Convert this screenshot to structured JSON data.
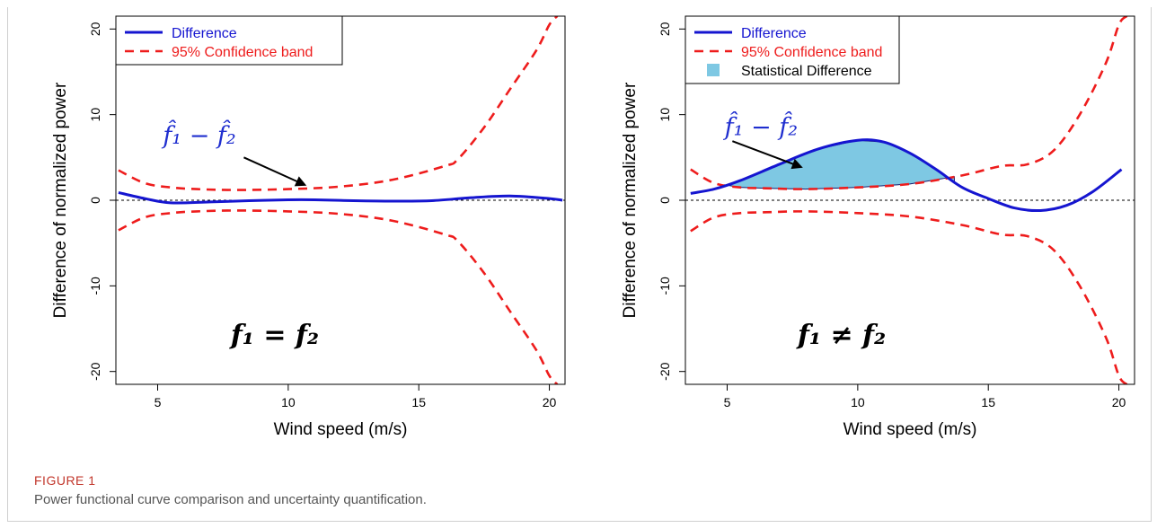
{
  "figure": {
    "label": "FIGURE 1",
    "caption": "Power functional curve comparison and uncertainty quantification."
  },
  "colors": {
    "difference": "#1515d0",
    "band": "#ee1c1c",
    "fill": "#7ec8e3",
    "zero_line": "#000000",
    "label_blue": "#1f2ecf"
  },
  "chart_data": [
    {
      "type": "line",
      "xlabel": "Wind speed (m/s)",
      "ylabel": "Difference of normalized power",
      "xlim": [
        3.4,
        20.6
      ],
      "ylim": [
        -21.5,
        21.5
      ],
      "xticks": [
        5,
        10,
        15,
        20
      ],
      "yticks": [
        -20,
        -10,
        0,
        10,
        20
      ],
      "reference_line": 0,
      "legend": {
        "position": "top-left",
        "entries": [
          {
            "label": "Difference",
            "kind": "line",
            "series": "difference"
          },
          {
            "label": "95% Confidence band",
            "kind": "dashed",
            "series": "band"
          }
        ]
      },
      "annotations": {
        "curve_label": "f̂₁ − f̂₂",
        "equation": "f₁ = f₂"
      },
      "series": [
        {
          "name": "Difference",
          "id": "difference",
          "x": [
            3.5,
            4.5,
            5.5,
            7,
            8.5,
            10,
            11,
            12.5,
            14,
            15.5,
            17,
            18.5,
            20,
            20.5
          ],
          "y": [
            0.9,
            0.2,
            -0.3,
            -0.2,
            -0.05,
            0.05,
            0.05,
            -0.05,
            -0.1,
            -0.05,
            0.3,
            0.5,
            0.2,
            0.0
          ]
        },
        {
          "name": "95% Confidence band",
          "id": "upper",
          "x": [
            3.5,
            4.5,
            5.5,
            6.5,
            8,
            10,
            12,
            14,
            16,
            16.5,
            17.5,
            18.5,
            19.5,
            20,
            20.3
          ],
          "y": [
            3.5,
            2.0,
            1.5,
            1.3,
            1.2,
            1.3,
            1.6,
            2.4,
            4.0,
            4.8,
            8.5,
            13.0,
            17.5,
            20.5,
            21.5
          ]
        },
        {
          "name": "95% Confidence band",
          "id": "lower",
          "x": [
            3.5,
            4.5,
            5.5,
            6.5,
            8,
            10,
            12,
            14,
            16,
            16.5,
            17.5,
            18.5,
            19.5,
            20,
            20.3
          ],
          "y": [
            -3.5,
            -2.0,
            -1.5,
            -1.3,
            -1.2,
            -1.3,
            -1.6,
            -2.4,
            -4.0,
            -4.8,
            -8.5,
            -13.0,
            -17.5,
            -20.5,
            -21.5
          ]
        }
      ]
    },
    {
      "type": "line",
      "xlabel": "Wind speed (m/s)",
      "ylabel": "Difference of normalized power",
      "xlim": [
        3.4,
        20.6
      ],
      "ylim": [
        -21.5,
        21.5
      ],
      "xticks": [
        5,
        10,
        15,
        20
      ],
      "yticks": [
        -20,
        -10,
        0,
        10,
        20
      ],
      "reference_line": 0,
      "legend": {
        "position": "top-left",
        "entries": [
          {
            "label": "Difference",
            "kind": "line",
            "series": "difference"
          },
          {
            "label": "95% Confidence band",
            "kind": "dashed",
            "series": "band"
          },
          {
            "label": "Statistical Difference",
            "kind": "fill",
            "series": "fill"
          }
        ]
      },
      "annotations": {
        "curve_label": "f̂₁ − f̂₂",
        "equation": "f₁ ≠ f₂"
      },
      "shaded_region": {
        "x_from": 4.9,
        "x_to": 13.7,
        "between": [
          "difference",
          "upper"
        ]
      },
      "series": [
        {
          "name": "Difference",
          "id": "difference",
          "x": [
            3.6,
            4.5,
            5.5,
            7,
            8.5,
            10,
            11,
            12,
            13,
            14,
            15,
            16,
            17,
            18,
            19,
            20.1
          ],
          "y": [
            0.8,
            1.3,
            2.3,
            4.2,
            6.0,
            7.0,
            6.8,
            5.5,
            3.6,
            1.5,
            0.2,
            -0.9,
            -1.2,
            -0.6,
            1.0,
            3.6
          ]
        },
        {
          "name": "95% Confidence band",
          "id": "upper",
          "x": [
            3.6,
            4.5,
            5.5,
            6.5,
            8,
            10,
            12,
            14,
            15.5,
            16.5,
            17.5,
            18.5,
            19.5,
            20,
            20.3
          ],
          "y": [
            3.6,
            2.0,
            1.5,
            1.4,
            1.3,
            1.5,
            1.9,
            2.9,
            4.0,
            4.2,
            5.8,
            10.0,
            16.0,
            20.5,
            21.5
          ]
        },
        {
          "name": "95% Confidence band",
          "id": "lower",
          "x": [
            3.6,
            4.5,
            5.5,
            6.5,
            8,
            10,
            12,
            14,
            15.5,
            16.5,
            17.5,
            18.5,
            19.5,
            20,
            20.3
          ],
          "y": [
            -3.6,
            -2.0,
            -1.5,
            -1.4,
            -1.3,
            -1.5,
            -1.9,
            -2.9,
            -4.0,
            -4.2,
            -5.8,
            -10.0,
            -16.0,
            -20.5,
            -21.5
          ]
        }
      ]
    }
  ]
}
